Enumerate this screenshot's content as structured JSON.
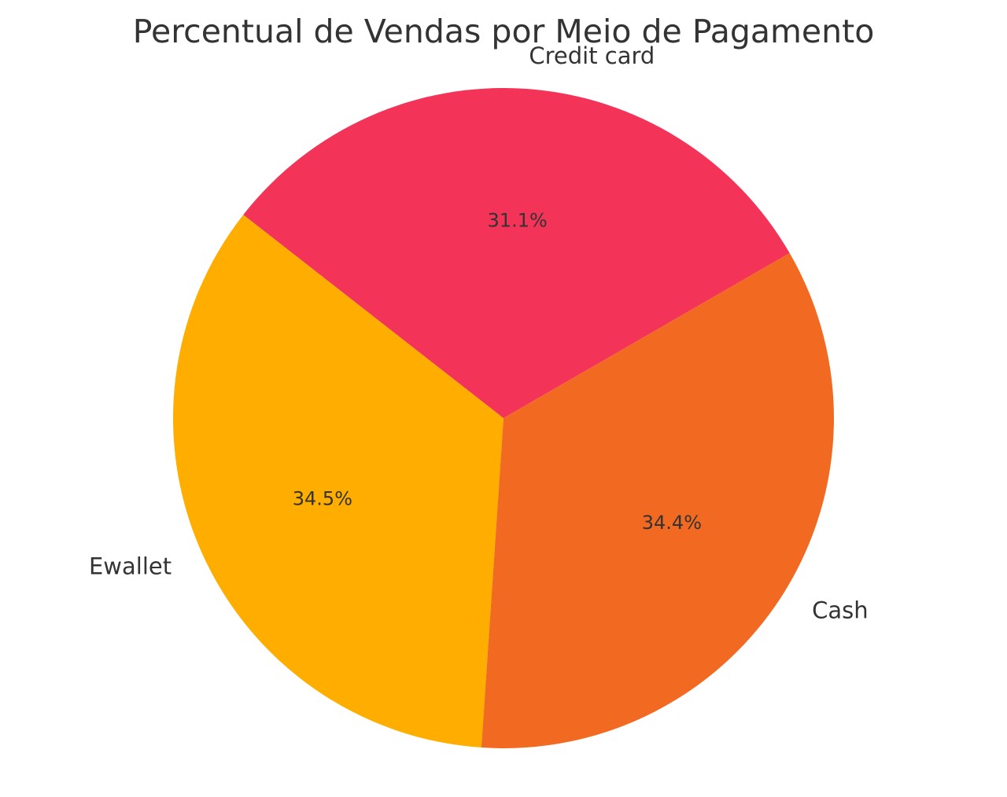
{
  "chart_data": {
    "type": "pie",
    "title": "Percentual de Vendas por Meio de Pagamento",
    "start_angle_deg": 30,
    "direction": "counterclockwise",
    "slices": [
      {
        "label": "Credit card",
        "value": 31.1,
        "pct_label": "31.1%",
        "color": "#F43358"
      },
      {
        "label": "Ewallet",
        "value": 34.5,
        "pct_label": "34.5%",
        "color": "#FFAE00"
      },
      {
        "label": "Cash",
        "value": 34.4,
        "pct_label": "34.4%",
        "color": "#F26A22"
      }
    ],
    "legend": "none"
  }
}
